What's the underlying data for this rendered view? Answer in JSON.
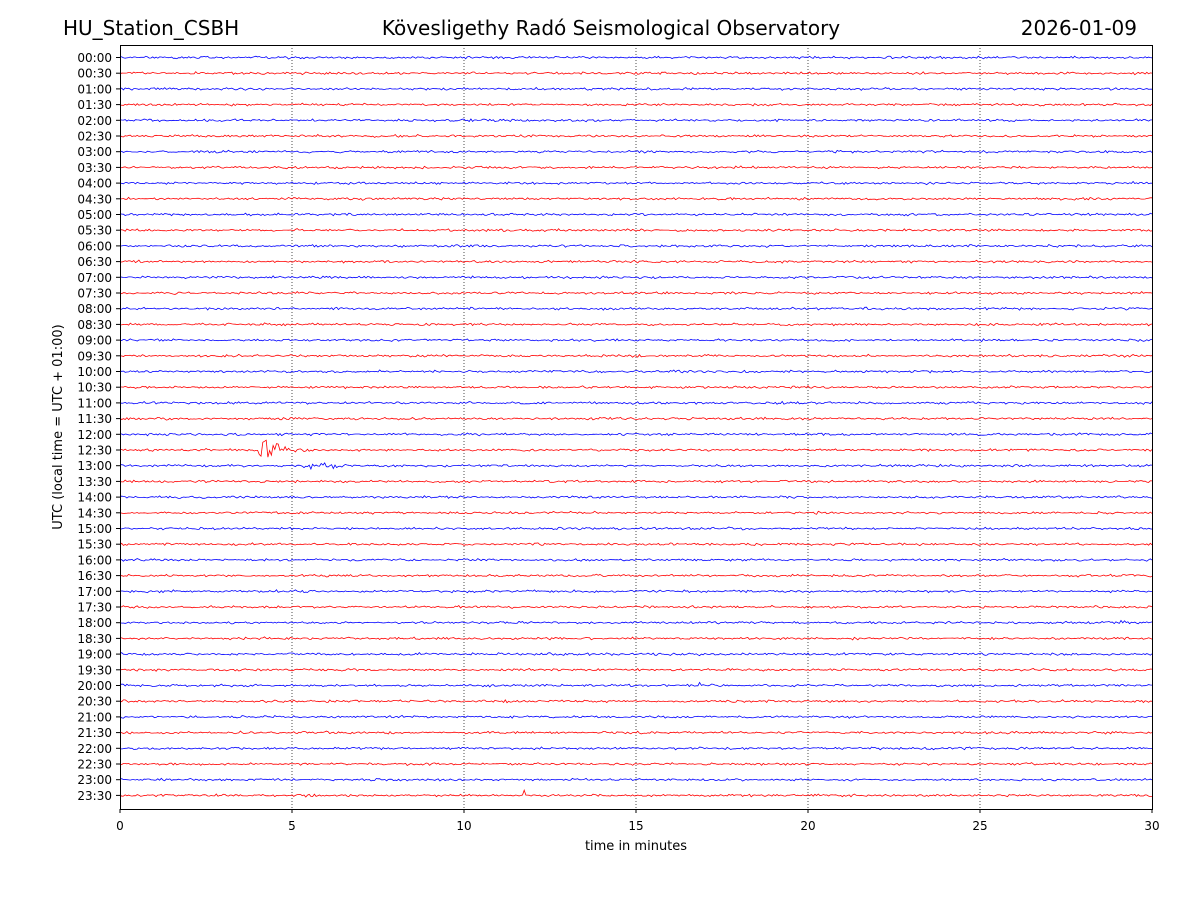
{
  "header": {
    "station": "HU_Station_CSBH",
    "observatory": "Kövesligethy Radó Seismological Observatory",
    "date": "2026-01-09"
  },
  "chart_data": {
    "type": "line",
    "title": "Kövesligethy Radó Seismological Observatory",
    "xlabel": "time in minutes",
    "ylabel": "UTC (local time = UTC + 01:00)",
    "xlim": [
      0,
      30
    ],
    "xticks": [
      0,
      5,
      10,
      15,
      20,
      25,
      30
    ],
    "grid": "vertical dotted at 5-minute ticks",
    "colors": {
      "even": "#0000ff",
      "odd": "#ff0000"
    },
    "rows": [
      "00:00",
      "00:30",
      "01:00",
      "01:30",
      "02:00",
      "02:30",
      "03:00",
      "03:30",
      "04:00",
      "04:30",
      "05:00",
      "05:30",
      "06:00",
      "06:30",
      "07:00",
      "07:30",
      "08:00",
      "08:30",
      "09:00",
      "09:30",
      "10:00",
      "10:30",
      "11:00",
      "11:30",
      "12:00",
      "12:30",
      "13:00",
      "13:30",
      "14:00",
      "14:30",
      "15:00",
      "15:30",
      "16:00",
      "16:30",
      "17:00",
      "17:30",
      "18:00",
      "18:30",
      "19:00",
      "19:30",
      "20:00",
      "20:30",
      "21:00",
      "21:30",
      "22:00",
      "22:30",
      "23:00",
      "23:30"
    ],
    "events": [
      {
        "row": "12:30",
        "start_min": 4.0,
        "peak_min": 4.1,
        "duration_min": 1.8,
        "amplitude": 1.0
      },
      {
        "row": "13:00",
        "start_min": 5.0,
        "peak_min": 5.9,
        "duration_min": 1.6,
        "amplitude": 0.35
      },
      {
        "row": "20:00",
        "start_min": 16.8,
        "peak_min": 16.85,
        "duration_min": 0.2,
        "amplitude": 0.4
      },
      {
        "row": "23:30",
        "start_min": 11.7,
        "peak_min": 11.75,
        "duration_min": 0.3,
        "amplitude": 0.3
      },
      {
        "row": "18:00",
        "start_min": 29.0,
        "peak_min": 29.1,
        "duration_min": 0.4,
        "amplitude": 0.25
      }
    ]
  }
}
